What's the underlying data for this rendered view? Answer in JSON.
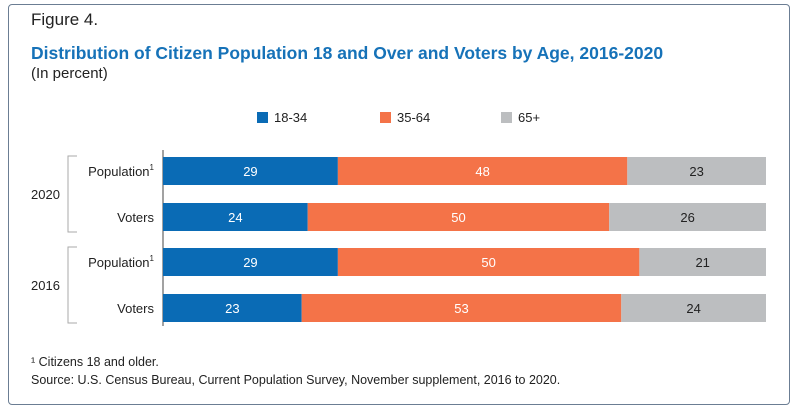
{
  "figure_label": "Figure 4.",
  "title": "Distribution of Citizen Population 18 and Over and Voters by Age, 2016-2020",
  "subtitle": "(In percent)",
  "footnote": "¹ Citizens 18 and older.",
  "source": "Source: U.S. Census Bureau, Current Population Survey, November supplement, 2016 to 2020.",
  "chart_data": {
    "type": "bar",
    "orientation": "horizontal",
    "stacked": true,
    "legend_position": "top",
    "xlim": [
      0,
      100
    ],
    "groups": [
      "2020",
      "2016"
    ],
    "categories": [
      "Population",
      "Voters",
      "Population",
      "Voters"
    ],
    "category_note_marker": "1",
    "series": [
      {
        "name": "18-34",
        "color": "#0a6bb5",
        "values": [
          29,
          24,
          29,
          23
        ]
      },
      {
        "name": "35-64",
        "color": "#f47348",
        "values": [
          48,
          50,
          50,
          53
        ]
      },
      {
        "name": "65+",
        "color": "#bcbec0",
        "values": [
          23,
          26,
          21,
          24
        ]
      }
    ]
  }
}
